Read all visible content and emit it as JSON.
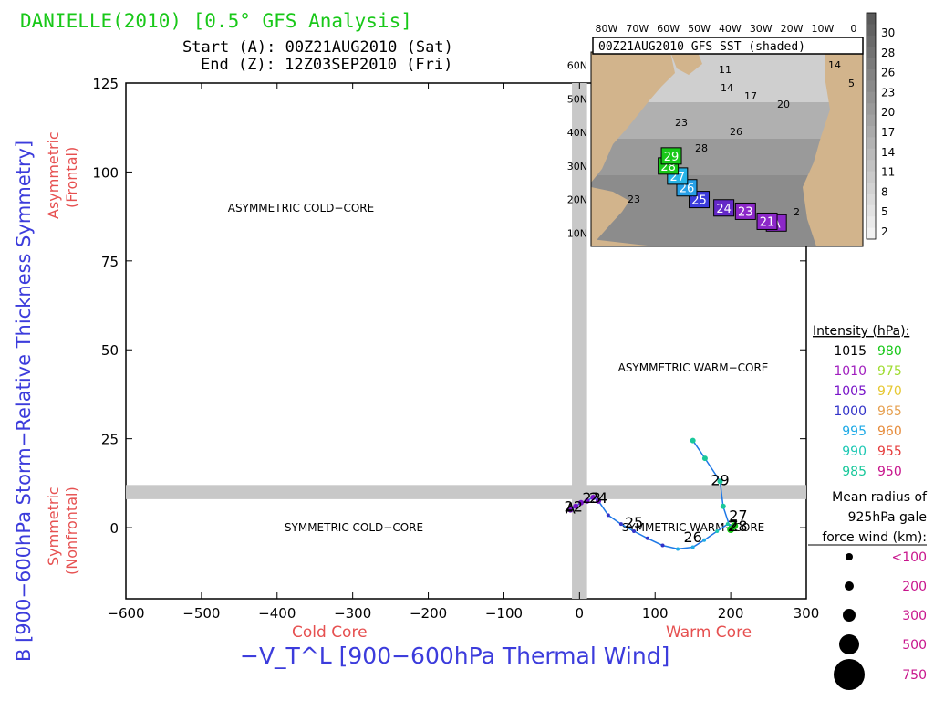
{
  "header": {
    "title": "DANIELLE(2010) [0.5° GFS Analysis]",
    "start": "Start (A): 00Z21AUG2010 (Sat)",
    "end": "End (Z): 12Z03SEP2010 (Fri)"
  },
  "colors": {
    "title": "#19c819",
    "axis_blue": "#3c3cdc",
    "axis_red": "#e65050",
    "divider": "#c8c8c8",
    "track_line": "#1e78e6",
    "land": "#d2b48c",
    "ocean": "#8c8c8c"
  },
  "chart_data": {
    "type": "scatter",
    "title": "DANIELLE(2010) [0.5° GFS Analysis]",
    "xlabel": "−V_T^L [900−600hPa Thermal Wind]",
    "ylabel": "B [900−600hPa Storm−Relative Thickness Symmetry]",
    "xlim": [
      -600,
      300
    ],
    "ylim": [
      -20,
      125
    ],
    "xticks": [
      -600,
      -500,
      -400,
      -300,
      -200,
      -100,
      0,
      100,
      200,
      300
    ],
    "yticks": [
      0,
      25,
      50,
      75,
      100,
      125
    ],
    "x_tick_labels": [
      "−600",
      "−500",
      "−400",
      "−300",
      "−200",
      "−100",
      "0",
      "100",
      "200",
      "300"
    ],
    "y_tick_labels": [
      "0",
      "25",
      "50",
      "75",
      "100",
      "125"
    ],
    "x_annotations": [
      "Cold Core",
      "Warm Core"
    ],
    "y_annotations": {
      "upper": "Asymmetric\n(Frontal)",
      "lower": "Symmetric\n(Nonfrontal)"
    },
    "quadrants": {
      "ul": "ASYMMETRIC COLD−CORE",
      "ur": "ASYMMETRIC WARM−CORE",
      "ll": "SYMMETRIC COLD−CORE",
      "lr": "SYMMETRIC WARM−CORE"
    },
    "dividers": {
      "x": 0,
      "x_halfwidth": 10,
      "y": 10,
      "y_halfwidth": 2
    },
    "grid": false,
    "track": [
      {
        "x": -12,
        "y": 5,
        "pressure": 1005,
        "size": 3
      },
      {
        "x": -5,
        "y": 6,
        "pressure": 1005,
        "size": 3
      },
      {
        "x": 2,
        "y": 7,
        "pressure": 1005,
        "size": 3
      },
      {
        "x": 10,
        "y": 7.5,
        "pressure": 1005,
        "size": 3
      },
      {
        "x": 18,
        "y": 8.5,
        "pressure": 1005,
        "size": 3
      },
      {
        "x": 25,
        "y": 7.5,
        "pressure": 1005,
        "size": 3
      },
      {
        "x": 38,
        "y": 3.5,
        "pressure": 1000,
        "size": 2
      },
      {
        "x": 55,
        "y": 1,
        "pressure": 1000,
        "size": 2
      },
      {
        "x": 72,
        "y": -1,
        "pressure": 1000,
        "size": 2
      },
      {
        "x": 90,
        "y": -3,
        "pressure": 1000,
        "size": 2
      },
      {
        "x": 110,
        "y": -5,
        "pressure": 1000,
        "size": 2
      },
      {
        "x": 130,
        "y": -6,
        "pressure": 995,
        "size": 2
      },
      {
        "x": 150,
        "y": -5.5,
        "pressure": 995,
        "size": 2
      },
      {
        "x": 165,
        "y": -3.5,
        "pressure": 995,
        "size": 2
      },
      {
        "x": 182,
        "y": -1,
        "pressure": 990,
        "size": 2
      },
      {
        "x": 196,
        "y": 1,
        "pressure": 985,
        "size": 2
      },
      {
        "x": 205,
        "y": 0.5,
        "pressure": 980,
        "size": 4
      },
      {
        "x": 200,
        "y": -0.5,
        "pressure": 980,
        "size": 4
      },
      {
        "x": 190,
        "y": 6,
        "pressure": 985,
        "size": 3
      },
      {
        "x": 186,
        "y": 13,
        "pressure": 985,
        "size": 3
      },
      {
        "x": 166,
        "y": 19.5,
        "pressure": 985,
        "size": 3
      },
      {
        "x": 150,
        "y": 24.5,
        "pressure": 985,
        "size": 3
      }
    ],
    "day_labels": [
      {
        "label": "A",
        "x": -12,
        "y": 5
      },
      {
        "label": "22",
        "x": -8,
        "y": 5.5
      },
      {
        "label": "23",
        "x": 16,
        "y": 8
      },
      {
        "label": "24",
        "x": 25,
        "y": 8
      },
      {
        "label": "25",
        "x": 72,
        "y": 1
      },
      {
        "label": "26",
        "x": 150,
        "y": -3
      },
      {
        "label": "27",
        "x": 210,
        "y": 3
      },
      {
        "label": "28",
        "x": 210,
        "y": 0
      },
      {
        "label": "29",
        "x": 186,
        "y": 13
      },
      {
        "label": "Z",
        "x": 203,
        "y": 0
      }
    ]
  },
  "inset": {
    "title": "00Z21AUG2010 GFS SST (shaded)",
    "lon_labels": [
      "80W",
      "70W",
      "60W",
      "50W",
      "40W",
      "30W",
      "20W",
      "10W",
      "0"
    ],
    "lat_labels": [
      "60N",
      "50N",
      "40N",
      "30N",
      "20N",
      "10N"
    ],
    "colorbar_labels": [
      "30",
      "28",
      "26",
      "23",
      "20",
      "17",
      "14",
      "11",
      "8",
      "5",
      "2"
    ],
    "contour_labels": [
      "11",
      "14",
      "17",
      "20",
      "23",
      "26",
      "28",
      "14",
      "5",
      "23",
      "2"
    ],
    "track_boxes": [
      {
        "label": "A",
        "lon": -25,
        "lat": 13,
        "color": "#8c28c8"
      },
      {
        "label": "21",
        "lon": -28,
        "lat": 13.5,
        "color": "#8c28c8"
      },
      {
        "label": "23",
        "lon": -35,
        "lat": 16.5,
        "color": "#8c28c8"
      },
      {
        "label": "24",
        "lon": -42,
        "lat": 17.5,
        "color": "#6428c8"
      },
      {
        "label": "25",
        "lon": -50,
        "lat": 20,
        "color": "#3c3cdc"
      },
      {
        "label": "26",
        "lon": -54,
        "lat": 23.5,
        "color": "#28a0e6"
      },
      {
        "label": "27",
        "lon": -57,
        "lat": 27,
        "color": "#28b4e6"
      },
      {
        "label": "28",
        "lon": -60,
        "lat": 30,
        "color": "#19c819"
      },
      {
        "label": "29",
        "lon": -59,
        "lat": 33,
        "color": "#19c819"
      }
    ]
  },
  "legend": {
    "intensity_title": "Intensity (hPa):",
    "intensity": [
      {
        "a": "1015",
        "a_color": "#000000",
        "b": "980",
        "b_color": "#19c819"
      },
      {
        "a": "1010",
        "a_color": "#a01ebe",
        "b": "975",
        "b_color": "#a0dc32"
      },
      {
        "a": "1005",
        "a_color": "#7814c8",
        "b": "970",
        "b_color": "#e6c832"
      },
      {
        "a": "1000",
        "a_color": "#3232c8",
        "b": "965",
        "b_color": "#e6a050"
      },
      {
        "a": "995",
        "a_color": "#1eaae6",
        "b": "960",
        "b_color": "#e68c3c"
      },
      {
        "a": "990",
        "a_color": "#1ec8b4",
        "b": "955",
        "b_color": "#e63c3c"
      },
      {
        "a": "985",
        "a_color": "#19c89b",
        "b": "950",
        "b_color": "#c8148c"
      }
    ],
    "radius_title_lines": [
      "Mean radius of",
      "925hPa gale",
      "force wind (km):"
    ],
    "radius": [
      {
        "label": "<100",
        "size": 4
      },
      {
        "label": "200",
        "size": 5
      },
      {
        "label": "300",
        "size": 7
      },
      {
        "label": "500",
        "size": 11
      },
      {
        "label": "750",
        "size": 17
      }
    ]
  }
}
